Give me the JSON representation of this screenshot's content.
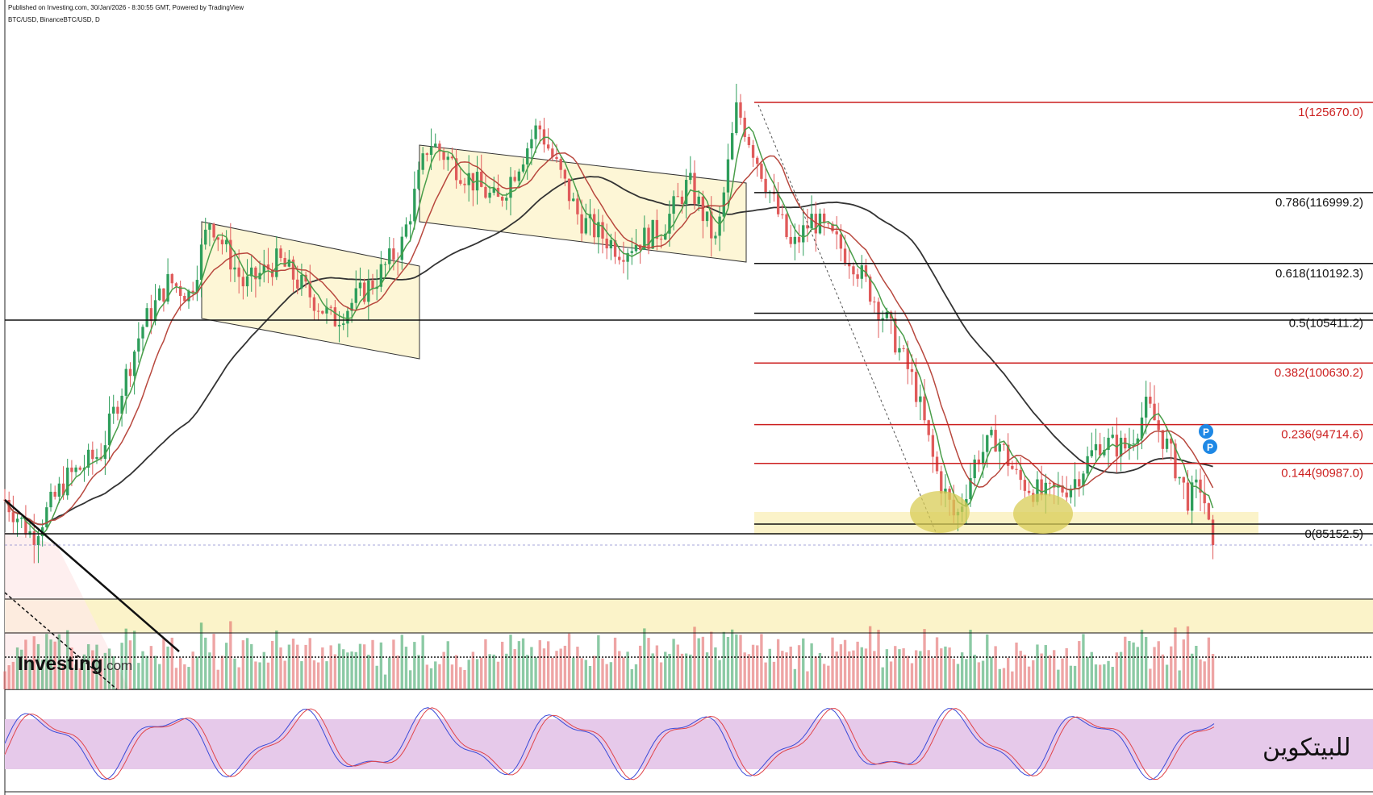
{
  "header": {
    "published": "Published on Investing.com, 30/Jan/2026 - 8:30:55 GMT, Powered by TradingView",
    "symbol": "BTC/USD, BinanceBTC/USD, D"
  },
  "logo": {
    "name": "Investing",
    "domain": ".com"
  },
  "watermark": "للبيتكوين",
  "colors": {
    "up": "#2e9e5b",
    "down": "#e05b5b",
    "fib_red": "#cc1f1f",
    "fib_black": "#111111",
    "ma_long": "#333333",
    "ma_fast": "#4a9e4a",
    "ma_mid": "#b8483e",
    "channel_fill": "#fdf6d6",
    "support_fill": "#fbf3c9",
    "stoch_band": "#e6c9ea",
    "stoch_k": "#3b4bd8",
    "stoch_d": "#e0444a",
    "marker": "#1e88e5"
  },
  "chart_data": {
    "type": "candlestick",
    "y_range": [
      76000,
      128000
    ],
    "price_path": [
      [
        0,
        87500
      ],
      [
        0.02,
        84000
      ],
      [
        0.045,
        89500
      ],
      [
        0.07,
        92000
      ],
      [
        0.1,
        104000
      ],
      [
        0.12,
        108500
      ],
      [
        0.135,
        107200
      ],
      [
        0.15,
        114500
      ],
      [
        0.175,
        108000
      ],
      [
        0.2,
        110500
      ],
      [
        0.24,
        104700
      ],
      [
        0.27,
        108500
      ],
      [
        0.29,
        112000
      ],
      [
        0.31,
        122000
      ],
      [
        0.33,
        119500
      ],
      [
        0.36,
        116000
      ],
      [
        0.39,
        123500
      ],
      [
        0.42,
        114500
      ],
      [
        0.45,
        111500
      ],
      [
        0.48,
        113500
      ],
      [
        0.5,
        118000
      ],
      [
        0.52,
        112000
      ],
      [
        0.535,
        125200
      ],
      [
        0.555,
        118500
      ],
      [
        0.575,
        111500
      ],
      [
        0.59,
        114500
      ],
      [
        0.62,
        110500
      ],
      [
        0.645,
        104500
      ],
      [
        0.665,
        98500
      ],
      [
        0.68,
        90500
      ],
      [
        0.695,
        85500
      ],
      [
        0.71,
        91500
      ],
      [
        0.725,
        93500
      ],
      [
        0.74,
        89500
      ],
      [
        0.76,
        87800
      ],
      [
        0.78,
        89000
      ],
      [
        0.8,
        93000
      ],
      [
        0.82,
        92500
      ],
      [
        0.835,
        96500
      ],
      [
        0.85,
        92500
      ],
      [
        0.865,
        87500
      ],
      [
        0.875,
        89000
      ],
      [
        0.883,
        82000
      ]
    ],
    "fibonacci": [
      {
        "ratio": 1,
        "price": 125670.0,
        "label": "1(125670.0)"
      },
      {
        "ratio": 0.786,
        "price": 116999.2,
        "label": "0.786(116999.2)"
      },
      {
        "ratio": 0.618,
        "price": 110192.3,
        "label": "0.618(110192.3)"
      },
      {
        "ratio": 0.5,
        "price": 105411.2,
        "label": "0.5(105411.2)"
      },
      {
        "ratio": 0.382,
        "price": 100630.2,
        "label": "0.382(100630.2)"
      },
      {
        "ratio": 0.236,
        "price": 94714.6,
        "label": "0.236(94714.6)"
      },
      {
        "ratio": 0.144,
        "price": 90987.0,
        "label": "0.144(90987.0)"
      },
      {
        "ratio": 0,
        "price": 85152.5,
        "label": "0(85152.5)"
      }
    ],
    "horizontal_levels": [
      104000,
      84500
    ],
    "indicators": [
      "moving averages",
      "volume",
      "stochastic oscillator"
    ],
    "markers": [
      "P",
      "P"
    ]
  }
}
